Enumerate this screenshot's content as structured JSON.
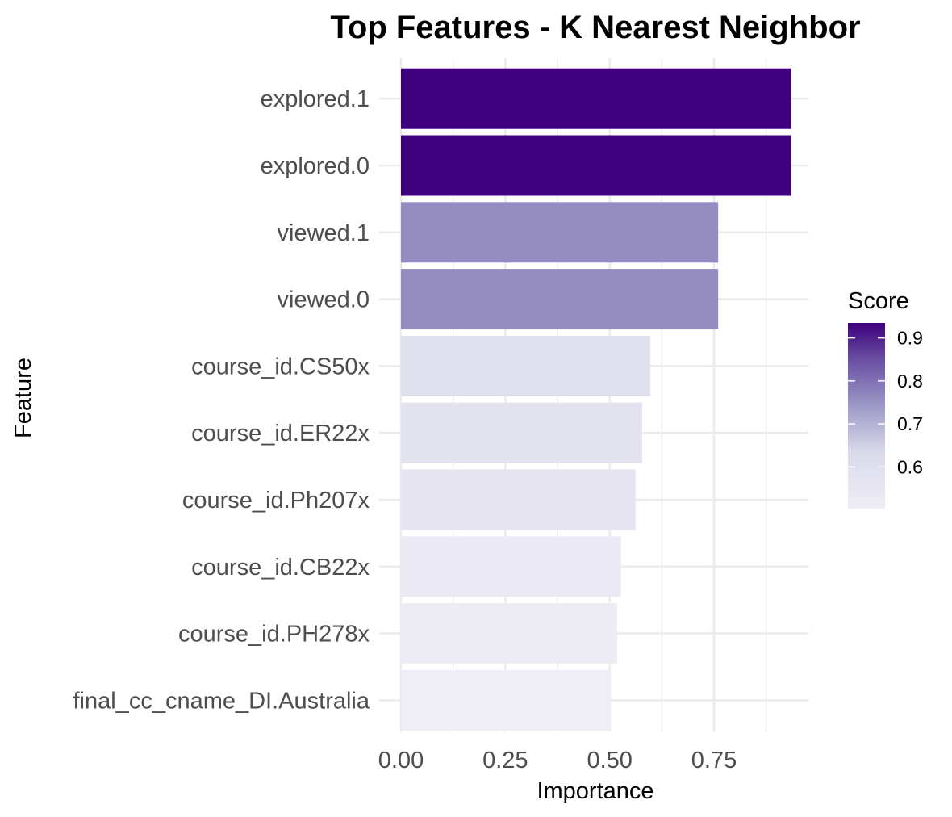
{
  "chart_data": {
    "type": "bar",
    "orientation": "horizontal",
    "title": "Top Features - K Nearest Neighbor",
    "xlabel": "Importance",
    "ylabel": "Feature",
    "categories": [
      "explored.1",
      "explored.0",
      "viewed.1",
      "viewed.0",
      "course_id.CS50x",
      "course_id.ER22x",
      "course_id.Ph207x",
      "course_id.CB22x",
      "course_id.PH278x",
      "final_cc_cname_DI.Australia"
    ],
    "values": [
      0.935,
      0.935,
      0.76,
      0.76,
      0.597,
      0.578,
      0.562,
      0.527,
      0.518,
      0.503
    ],
    "x_ticks": [
      "0.00",
      "0.25",
      "0.50",
      "0.75"
    ],
    "xlim": [
      0,
      0.98
    ],
    "grid": true,
    "legend": {
      "title": "Score",
      "placement": "right",
      "ticks": [
        "0.9",
        "0.8",
        "0.7",
        "0.6"
      ],
      "range": [
        0.503,
        0.935
      ],
      "low_color": "#efedf5",
      "high_color": "#3f007d"
    },
    "colors": {
      "grid": "#ebebeb",
      "text": "#4d4d4d"
    }
  }
}
